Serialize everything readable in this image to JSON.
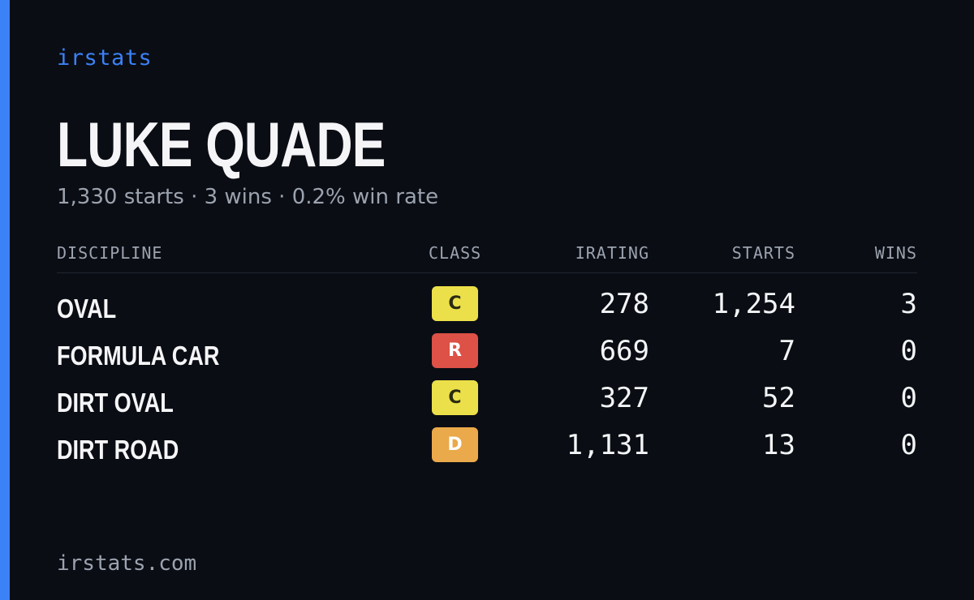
{
  "brand": "irstats",
  "driver": {
    "name": "LUKE QUADE",
    "summary": "1,330 starts · 3 wins · 0.2% win rate"
  },
  "table": {
    "headers": {
      "discipline": "DISCIPLINE",
      "class": "CLASS",
      "irating": "IRATING",
      "starts": "STARTS",
      "wins": "WINS"
    },
    "rows": [
      {
        "discipline": "OVAL",
        "class": "C",
        "class_color": "#ece04a",
        "class_text_color": "#2a2a12",
        "irating": "278",
        "starts": "1,254",
        "wins": "3"
      },
      {
        "discipline": "FORMULA CAR",
        "class": "R",
        "class_color": "#dd5146",
        "class_text_color": "#ffffff",
        "irating": "669",
        "starts": "7",
        "wins": "0"
      },
      {
        "discipline": "DIRT OVAL",
        "class": "C",
        "class_color": "#ece04a",
        "class_text_color": "#2a2a12",
        "irating": "327",
        "starts": "52",
        "wins": "0"
      },
      {
        "discipline": "DIRT ROAD",
        "class": "D",
        "class_color": "#eaa94a",
        "class_text_color": "#ffffff",
        "irating": "1,131",
        "starts": "13",
        "wins": "0"
      }
    ]
  },
  "footer": "irstats.com",
  "colors": {
    "background": "#0a0d14",
    "accent": "#3b82f6",
    "muted_text": "#9ca3af"
  }
}
